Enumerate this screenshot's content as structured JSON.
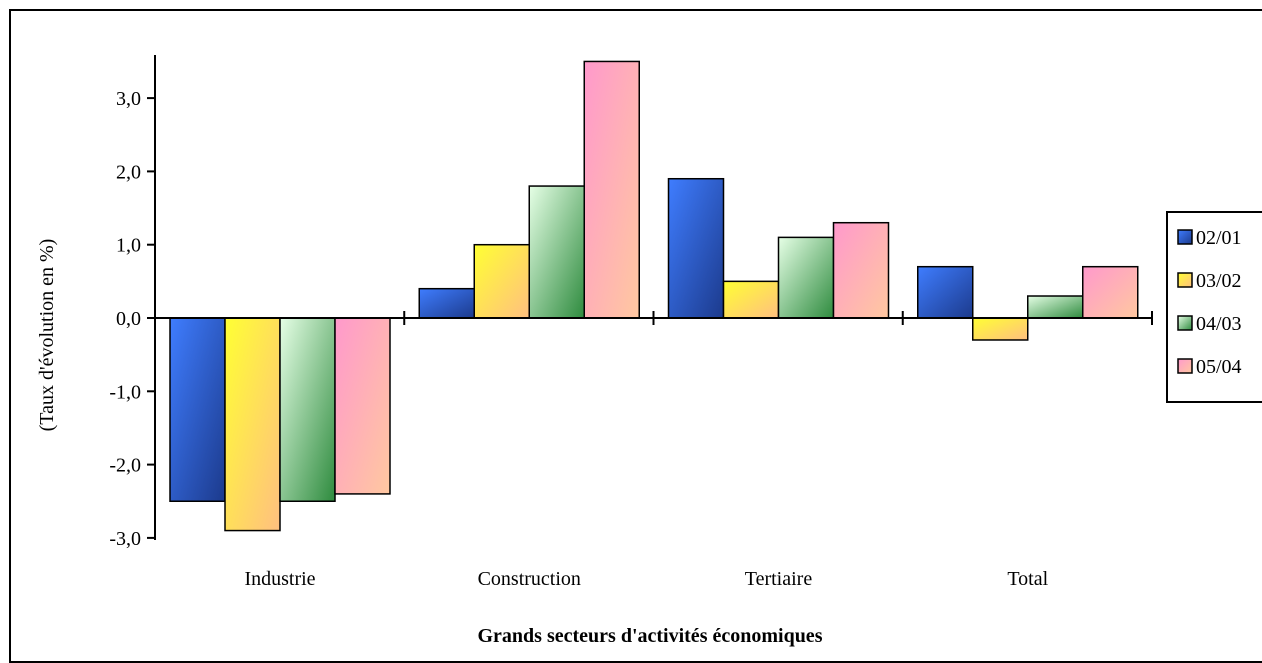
{
  "chart_data": {
    "type": "bar",
    "title": "",
    "categories": [
      "Industrie",
      "Construction",
      "Tertiaire",
      "Total"
    ],
    "series": [
      {
        "name": "02/01",
        "values": [
          -2.5,
          0.4,
          1.9,
          0.7
        ],
        "color": "#2b4fbf"
      },
      {
        "name": "03/02",
        "values": [
          -2.9,
          1.0,
          0.5,
          -0.3
        ],
        "color": "#ffe633"
      },
      {
        "name": "04/03",
        "values": [
          -2.5,
          1.8,
          1.1,
          0.3
        ],
        "color": "#59b36b"
      },
      {
        "name": "05/04",
        "values": [
          -2.4,
          3.5,
          1.3,
          0.7
        ],
        "color": "#ff99cc"
      }
    ],
    "ylabel": "(Taux d'évolution en %)",
    "xlabel": "Grands secteurs d'activités économiques",
    "ylim": [
      -3.0,
      3.5
    ],
    "yticks": [
      -3.0,
      -2.0,
      -1.0,
      0.0,
      1.0,
      2.0,
      3.0
    ],
    "ytick_labels": [
      "-3,0",
      "-2,0",
      "-1,0",
      "0,0",
      "1,0",
      "2,0",
      "3,0"
    ],
    "grid": false,
    "legend_position": "right"
  }
}
